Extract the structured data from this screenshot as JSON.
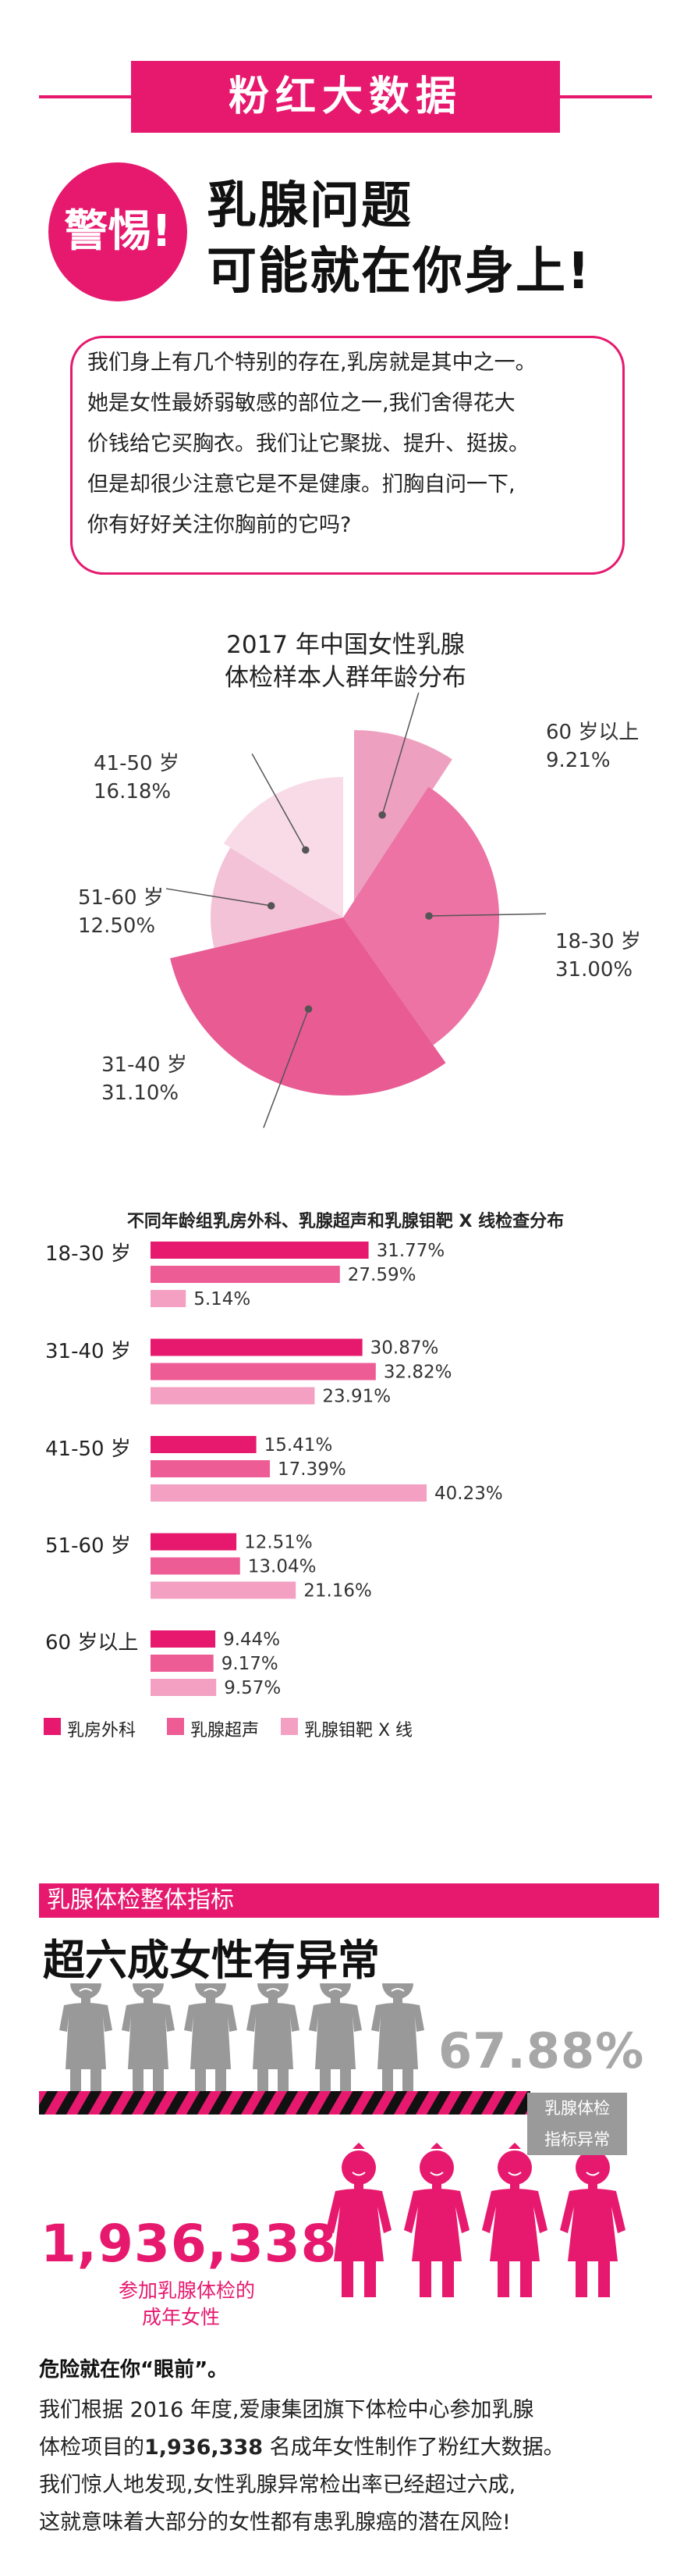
{
  "header": {
    "banner": "粉红大数据",
    "warn": "警惕!",
    "headline_1": "乳腺问题",
    "headline_2": "可能就在你身上!"
  },
  "intro": [
    "我们身上有几个特别的存在,乳房就是其中之一。",
    "她是女性最娇弱敏感的部位之一,我们舍得花大",
    "价钱给它买胸衣。我们让它聚拢、提升、挺拔。",
    "但是却很少注意它是不是健康。扪胸自问一下,",
    "你有好好关注你胸前的它吗?"
  ],
  "colors": {
    "brand": "#e6196e",
    "series1": "#e6196e",
    "series2": "#ee5c96",
    "series3": "#f3a0c2",
    "grey": "#9a9a9a"
  },
  "chart_data": [
    {
      "type": "pie",
      "title_line1": "2017 年中国女性乳腺",
      "title_line2": "体检样本人群年龄分布",
      "slices": [
        {
          "label": "60 岁以上",
          "value": 9.21,
          "text": "9.21%",
          "color": "#eea0c0"
        },
        {
          "label": "18-30 岁",
          "value": 31.0,
          "text": "31.00%",
          "color": "#ec73a4"
        },
        {
          "label": "31-40 岁",
          "value": 31.1,
          "text": "31.10%",
          "color": "#e85b93"
        },
        {
          "label": "51-60 岁",
          "value": 12.5,
          "text": "12.50%",
          "color": "#f4c2d6"
        },
        {
          "label": "41-50 岁",
          "value": 16.18,
          "text": "16.18%",
          "color": "#f8dbe6"
        }
      ]
    },
    {
      "type": "bar",
      "title": "不同年龄组乳房外科、乳腺超声和乳腺钼靶 X 线检查分布",
      "categories": [
        "18-30 岁",
        "31-40 岁",
        "41-50 岁",
        "51-60 岁",
        "60 岁以上"
      ],
      "series": [
        {
          "name": "乳房外科",
          "values": [
            31.77,
            30.87,
            15.41,
            12.51,
            9.44
          ],
          "labels": [
            "31.77%",
            "30.87%",
            "15.41%",
            "12.51%",
            "9.44%"
          ]
        },
        {
          "name": "乳腺超声",
          "values": [
            27.59,
            32.82,
            17.39,
            13.04,
            9.17
          ],
          "labels": [
            "27.59%",
            "32.82%",
            "17.39%",
            "13.04%",
            "9.17%"
          ]
        },
        {
          "name": "乳腺钼靶 X 线",
          "values": [
            5.14,
            23.91,
            40.23,
            21.16,
            9.57
          ],
          "labels": [
            "5.14%",
            "23.91%",
            "40.23%",
            "21.16%",
            "9.57%"
          ]
        }
      ]
    }
  ],
  "overall": {
    "section_title": "乳腺体检整体指标",
    "subhead": "超六成女性有异常",
    "abnormal_pct": "67.88%",
    "abnormal_label_1": "乳腺体检",
    "abnormal_label_2": "指标异常",
    "participants": "1,936,338",
    "participants_cap_1": "参加乳腺体检的",
    "participants_cap_2": "成年女性"
  },
  "conclusion": {
    "danger": "危险就在你“眼前”。",
    "line1": "我们根据 2016 年度,爱康集团旗下体检中心参加乳腺",
    "line2_a": "体检项目的",
    "line2_b": "1,936,338",
    "line2_c": " 名成年女性制作了粉红大数据。",
    "line3": "我们惊人地发现,女性乳腺异常检出率已经超过六成,",
    "line4": "这就意味着大部分的女性都有患乳腺癌的潜在风险!"
  }
}
